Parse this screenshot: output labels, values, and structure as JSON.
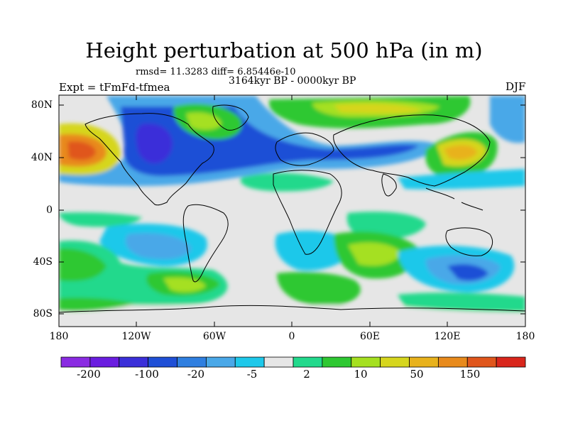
{
  "header": {
    "title": "Height perturbation at 500 hPa (in m)",
    "stats": "rmsd= 11.3283 diff= 6.85446e-10",
    "period": "3164kyr BP - 0000kyr BP",
    "experiment": "Expt = tFmFd-tfmea",
    "season": "DJF"
  },
  "axes": {
    "lat_ticks": [
      "80N",
      "40N",
      "0",
      "40S",
      "80S"
    ],
    "lon_ticks": [
      "180",
      "120W",
      "60W",
      "0",
      "60E",
      "120E",
      "180"
    ]
  },
  "colorbar": {
    "labels": [
      "-200",
      "-100",
      "-20",
      "-5",
      "2",
      "10",
      "50",
      "150"
    ],
    "colors": [
      "#8a2be2",
      "#6a1de0",
      "#3b2fd9",
      "#1f4fd6",
      "#2f7fe0",
      "#4aa8e8",
      "#1ec8ea",
      "#e6e6e6",
      "#22d98c",
      "#2ec832",
      "#a5e020",
      "#d6d61e",
      "#e8b21c",
      "#e88a1c",
      "#e0561c",
      "#d9261c"
    ]
  },
  "map_data": {
    "field": "500 hPa geopotential height perturbation",
    "units": "m",
    "projection": "cylindrical equidistant",
    "lon_range": [
      -180,
      180
    ],
    "lat_range": [
      -90,
      90
    ]
  }
}
